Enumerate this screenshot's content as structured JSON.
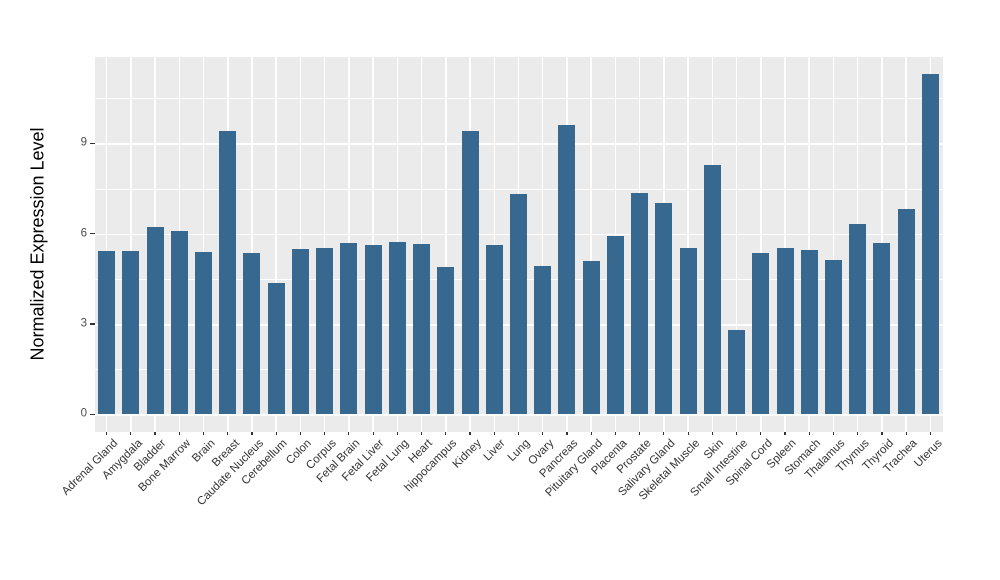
{
  "chart_data": {
    "type": "bar",
    "title": "",
    "xlabel": "",
    "ylabel": "Normalized Expression Level",
    "categories": [
      "Adrenal Gland",
      "Amygdala",
      "Bladder",
      "Bone Marrow",
      "Brain",
      "Breast",
      "Caudate Nucleus",
      "Cerebellum",
      "Colon",
      "Corpus",
      "Fetal Brain",
      "Fetal Liver",
      "Fetal Lung",
      "Heart",
      "hippocampus",
      "Kidney",
      "Liver",
      "Lung",
      "Ovary",
      "Pancreas",
      "Pituitary Gland",
      "Placenta",
      "Prostate",
      "Salivary Gland",
      "Skeletal Muscle",
      "Skin",
      "Small Intestine",
      "Spinal Cord",
      "Spleen",
      "Stomach",
      "Thalamus",
      "Thymus",
      "Thyroid",
      "Trachea",
      "Uterus"
    ],
    "values": [
      5.43,
      5.43,
      6.23,
      6.08,
      5.4,
      9.41,
      5.36,
      4.36,
      5.49,
      5.53,
      5.69,
      5.63,
      5.72,
      5.65,
      4.88,
      9.42,
      5.62,
      7.31,
      4.92,
      9.62,
      5.09,
      5.91,
      7.36,
      7.02,
      5.52,
      8.28,
      2.8,
      5.37,
      5.52,
      5.46,
      5.12,
      6.31,
      5.7,
      6.82,
      11.31
    ],
    "yaxis": {
      "ticks": [
        0,
        3,
        6,
        9
      ],
      "minor_gridlines": [
        1.5,
        4.5,
        7.5,
        10.5
      ],
      "range": [
        -0.57,
        11.89
      ]
    },
    "grid": "on",
    "legend": "none",
    "x_label_angle_deg": 45,
    "colors": {
      "bar": "#376990",
      "panel_background": "#EBEBEB",
      "gridline": "#FFFFFF",
      "y_axis_text": "#4D4D4D",
      "x_axis_text": "#333333",
      "axis_title": "#000000",
      "tick_mark": "#333333",
      "figure_background": "#FFFFFF"
    }
  }
}
